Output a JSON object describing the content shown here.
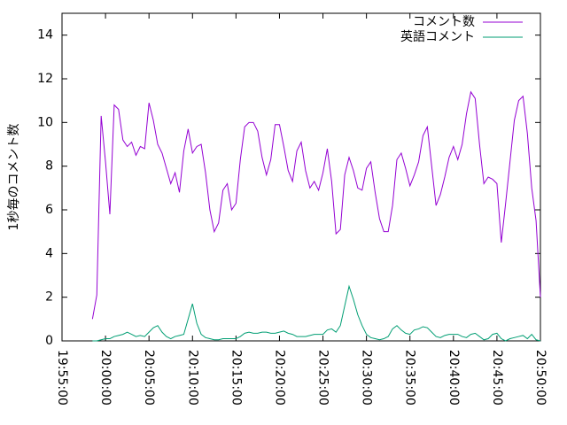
{
  "chart_data": {
    "type": "line",
    "ylabel": "1秒毎のコメント数",
    "xlim": [
      "19:55:00",
      "20:50:00"
    ],
    "xticks": [
      "19:55:00",
      "20:00:00",
      "20:05:00",
      "20:10:00",
      "20:15:00",
      "20:20:00",
      "20:25:00",
      "20:30:00",
      "20:35:00",
      "20:40:00",
      "20:45:00",
      "20:50:00"
    ],
    "ylim": [
      0,
      15
    ],
    "yticks": [
      0,
      2,
      4,
      6,
      8,
      10,
      12,
      14
    ],
    "legend": "top-right",
    "x": [
      "19:58:30",
      "19:59:00",
      "19:59:30",
      "20:00:00",
      "20:00:30",
      "20:01:00",
      "20:01:30",
      "20:02:00",
      "20:02:30",
      "20:03:00",
      "20:03:30",
      "20:04:00",
      "20:04:30",
      "20:05:00",
      "20:05:30",
      "20:06:00",
      "20:06:30",
      "20:07:00",
      "20:07:30",
      "20:08:00",
      "20:08:30",
      "20:09:00",
      "20:09:30",
      "20:10:00",
      "20:10:30",
      "20:11:00",
      "20:11:30",
      "20:12:00",
      "20:12:30",
      "20:13:00",
      "20:13:30",
      "20:14:00",
      "20:14:30",
      "20:15:00",
      "20:15:30",
      "20:16:00",
      "20:16:30",
      "20:17:00",
      "20:17:30",
      "20:18:00",
      "20:18:30",
      "20:19:00",
      "20:19:30",
      "20:20:00",
      "20:20:30",
      "20:21:00",
      "20:21:30",
      "20:22:00",
      "20:22:30",
      "20:23:00",
      "20:23:30",
      "20:24:00",
      "20:24:30",
      "20:25:00",
      "20:25:30",
      "20:26:00",
      "20:26:30",
      "20:27:00",
      "20:27:30",
      "20:28:00",
      "20:28:30",
      "20:29:00",
      "20:29:30",
      "20:30:00",
      "20:30:30",
      "20:31:00",
      "20:31:30",
      "20:32:00",
      "20:32:30",
      "20:33:00",
      "20:33:30",
      "20:34:00",
      "20:34:30",
      "20:35:00",
      "20:35:30",
      "20:36:00",
      "20:36:30",
      "20:37:00",
      "20:37:30",
      "20:38:00",
      "20:38:30",
      "20:39:00",
      "20:39:30",
      "20:40:00",
      "20:40:30",
      "20:41:00",
      "20:41:30",
      "20:42:00",
      "20:42:30",
      "20:43:00",
      "20:43:30",
      "20:44:00",
      "20:44:30",
      "20:45:00",
      "20:45:30",
      "20:46:00",
      "20:46:30",
      "20:47:00",
      "20:47:30",
      "20:48:00",
      "20:48:30",
      "20:49:00",
      "20:49:30",
      "20:50:00"
    ],
    "series": [
      {
        "name": "コメント数",
        "color": "#9400d3",
        "values": [
          1.0,
          2.1,
          10.3,
          8.2,
          5.8,
          10.8,
          10.6,
          9.2,
          8.9,
          9.1,
          8.5,
          8.9,
          8.8,
          10.9,
          10.1,
          9.0,
          8.6,
          7.9,
          7.2,
          7.7,
          6.8,
          8.7,
          9.7,
          8.6,
          8.9,
          9.0,
          7.7,
          6.0,
          5.0,
          5.4,
          6.9,
          7.2,
          6.0,
          6.3,
          8.3,
          9.8,
          10.0,
          10.0,
          9.6,
          8.4,
          7.6,
          8.3,
          9.9,
          9.9,
          8.9,
          7.8,
          7.3,
          8.7,
          9.1,
          7.8,
          7.0,
          7.3,
          6.9,
          7.7,
          8.8,
          7.3,
          4.9,
          5.1,
          7.6,
          8.4,
          7.8,
          7.0,
          6.9,
          7.9,
          8.2,
          6.8,
          5.6,
          5.0,
          5.0,
          6.2,
          8.3,
          8.6,
          7.9,
          7.1,
          7.6,
          8.2,
          9.4,
          9.8,
          8.0,
          6.2,
          6.7,
          7.5,
          8.4,
          8.9,
          8.3,
          9.0,
          10.4,
          11.4,
          11.1,
          9.0,
          7.2,
          7.5,
          7.4,
          7.2,
          4.5,
          6.3,
          8.2,
          10.1,
          11.0,
          11.2,
          9.5,
          7.0,
          5.5,
          2.0
        ]
      },
      {
        "name": "英語コメント",
        "color": "#009e73",
        "values": [
          0,
          0,
          0.05,
          0.1,
          0.1,
          0.2,
          0.25,
          0.3,
          0.4,
          0.3,
          0.2,
          0.25,
          0.2,
          0.4,
          0.6,
          0.7,
          0.4,
          0.2,
          0.1,
          0.2,
          0.25,
          0.3,
          1.0,
          1.7,
          0.8,
          0.3,
          0.15,
          0.1,
          0.05,
          0.05,
          0.1,
          0.1,
          0.1,
          0.1,
          0.2,
          0.35,
          0.4,
          0.35,
          0.35,
          0.4,
          0.4,
          0.35,
          0.35,
          0.4,
          0.45,
          0.35,
          0.3,
          0.2,
          0.2,
          0.2,
          0.25,
          0.3,
          0.3,
          0.3,
          0.5,
          0.55,
          0.4,
          0.7,
          1.6,
          2.5,
          1.9,
          1.2,
          0.7,
          0.3,
          0.15,
          0.1,
          0.05,
          0.1,
          0.2,
          0.55,
          0.7,
          0.5,
          0.35,
          0.3,
          0.5,
          0.55,
          0.65,
          0.6,
          0.4,
          0.2,
          0.15,
          0.25,
          0.3,
          0.3,
          0.3,
          0.2,
          0.15,
          0.3,
          0.35,
          0.2,
          0.05,
          0.1,
          0.3,
          0.35,
          0.1,
          0,
          0.1,
          0.15,
          0.2,
          0.25,
          0.1,
          0.3,
          0.05,
          0
        ]
      }
    ]
  }
}
